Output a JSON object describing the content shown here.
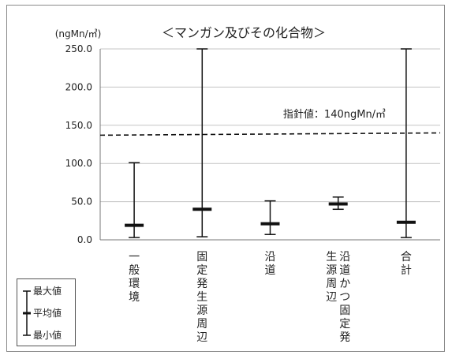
{
  "chart_data": {
    "type": "range",
    "title": "＜マンガン及びその化合物＞",
    "ylabel": "(ngMn/㎥)",
    "ylim": [
      0,
      250
    ],
    "yticks": [
      "0.0",
      "50.0",
      "100.0",
      "150.0",
      "200.0",
      "250.0"
    ],
    "grid": true,
    "categories": [
      "一般環境",
      "固定発生源周辺",
      "沿道",
      "沿道かつ固定発生源周辺",
      "合計"
    ],
    "category_lines": [
      [
        "一般環境"
      ],
      [
        "固定発生源周辺"
      ],
      [
        "沿道"
      ],
      [
        "沿道かつ固定発",
        "生源周辺"
      ],
      [
        "合計"
      ]
    ],
    "series": [
      {
        "name": "最大値",
        "values": [
          101,
          250,
          51,
          56,
          250
        ]
      },
      {
        "name": "平均値",
        "values": [
          19,
          40,
          21,
          47,
          23
        ]
      },
      {
        "name": "最小値",
        "values": [
          3,
          4,
          7,
          40,
          3
        ]
      }
    ],
    "reference_line": {
      "value": 137,
      "end_value": 140,
      "label": "指針値：140ngMn/㎥"
    },
    "legend": {
      "items": [
        "最大値",
        "平均値",
        "最小値"
      ],
      "placement": "bottom-left"
    }
  }
}
